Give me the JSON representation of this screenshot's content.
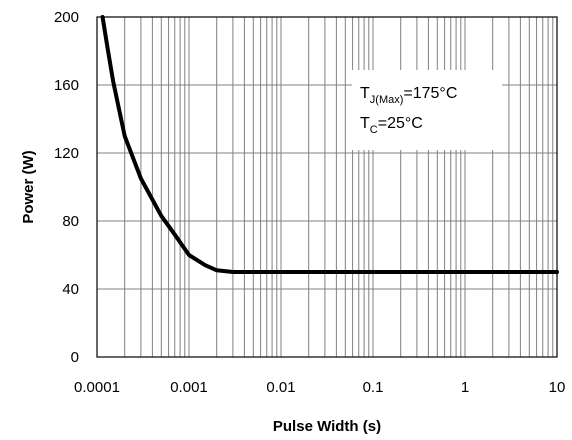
{
  "chart_data": {
    "type": "line",
    "xlabel": "Pulse Width (s)",
    "ylabel": "Power (W)",
    "x_scale": "log",
    "xlim": [
      0.0001,
      10
    ],
    "ylim": [
      0,
      200
    ],
    "grid": true,
    "x_ticks": [
      {
        "value": 0.0001,
        "label": "0.0001"
      },
      {
        "value": 0.001,
        "label": "0.001"
      },
      {
        "value": 0.01,
        "label": "0.01"
      },
      {
        "value": 0.1,
        "label": "0.1"
      },
      {
        "value": 1,
        "label": "1"
      },
      {
        "value": 10,
        "label": "10"
      }
    ],
    "y_ticks": [
      {
        "value": 0,
        "label": "0"
      },
      {
        "value": 40,
        "label": "40"
      },
      {
        "value": 80,
        "label": "80"
      },
      {
        "value": 120,
        "label": "120"
      },
      {
        "value": 160,
        "label": "160"
      },
      {
        "value": 200,
        "label": "200"
      }
    ],
    "series": [
      {
        "color": "#000000",
        "x": [
          0.000115,
          0.00013,
          0.00015,
          0.0002,
          0.0003,
          0.0005,
          0.0007,
          0.001,
          0.0015,
          0.002,
          0.003,
          0.005,
          0.01,
          0.1,
          1,
          10
        ],
        "y": [
          200,
          182,
          162,
          130,
          105,
          83,
          72,
          60,
          54,
          51,
          50,
          50,
          50,
          50,
          50,
          50
        ]
      }
    ],
    "annotations": {
      "tj_main": "T",
      "tj_sub": "J(Max)",
      "tj_value": "=175°C",
      "tc_main": "T",
      "tc_sub": "C",
      "tc_value": "=25°C"
    }
  }
}
